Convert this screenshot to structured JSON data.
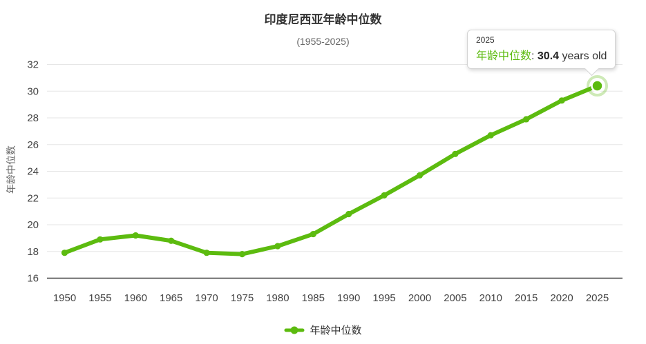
{
  "page": {
    "title": "印度尼西亚年龄中位数",
    "subtitle": "(1955-2025)"
  },
  "y_axis": {
    "title": "年龄中位数"
  },
  "legend": {
    "items": [
      {
        "label": "年龄中位数",
        "marker": "green-line-dot-marker"
      }
    ]
  },
  "tooltip": {
    "year": "2025",
    "series_label": "年龄中位数",
    "separator": ": ",
    "value": "30.4",
    "suffix": " years old"
  },
  "colors": {
    "series_green": "#5cbb0f",
    "halo_green": "rgba(92,187,15,0.3)",
    "grid": "#e6e6e6",
    "axis_line": "#3d3d3d",
    "tick_text": "#444444",
    "title_text": "#333333",
    "muted_text": "#666666"
  },
  "chart_data": {
    "type": "line",
    "title": "印度尼西亚年龄中位数",
    "subtitle": "(1955-2025)",
    "xlabel": "",
    "ylabel": "年龄中位数",
    "x": [
      1950,
      1955,
      1960,
      1965,
      1970,
      1975,
      1980,
      1985,
      1990,
      1995,
      2000,
      2005,
      2010,
      2015,
      2020,
      2025
    ],
    "series": [
      {
        "name": "年龄中位数",
        "values": [
          17.9,
          18.9,
          19.2,
          18.8,
          17.9,
          17.8,
          18.4,
          19.3,
          20.8,
          22.2,
          23.7,
          25.3,
          26.7,
          27.9,
          29.3,
          30.4
        ]
      }
    ],
    "ylim": [
      16,
      32
    ],
    "yticks": [
      16,
      18,
      20,
      22,
      24,
      26,
      28,
      30,
      32
    ],
    "grid": true,
    "legend_position": "bottom",
    "highlighted_point": {
      "x": 2025,
      "value": 30.4,
      "tooltip_text": "年龄中位数: 30.4 years old"
    }
  }
}
